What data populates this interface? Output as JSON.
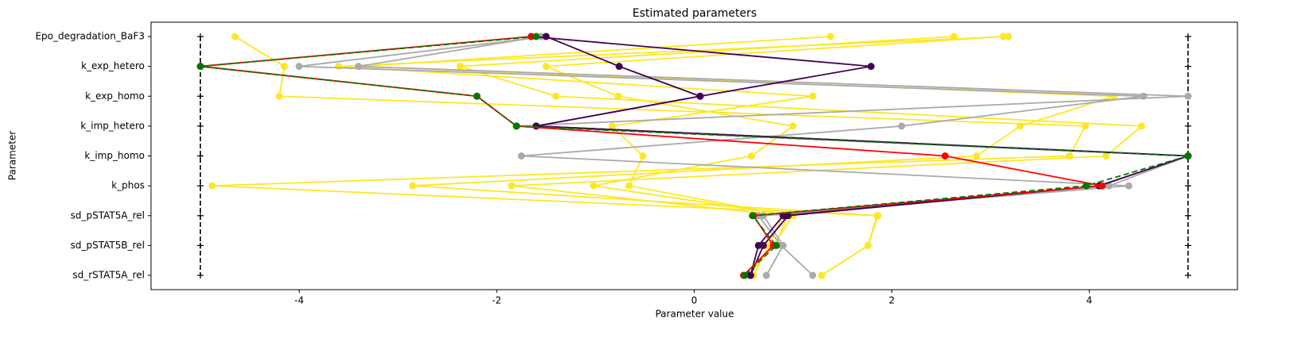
{
  "chart_data": {
    "type": "parameters",
    "title": "Estimated parameters",
    "x_label": "Parameter value",
    "y_label": "Parameter",
    "categories": [
      "Epo_degradation_BaF3",
      "k_exp_hetero",
      "k_exp_homo",
      "k_imp_hetero",
      "k_imp_homo",
      "k_phos",
      "sd_pSTAT5A_rel",
      "sd_pSTAT5B_rel",
      "sd_rSTAT5A_rel"
    ],
    "xlim": [
      -5.5,
      5.5
    ],
    "xticks": [
      -4,
      -2,
      0,
      2,
      4
    ],
    "lower_bound": -5,
    "upper_bound": 5,
    "series": [
      {
        "color": "#fde725",
        "values": [
          -4.65,
          -4.15,
          -4.2,
          3.96,
          3.8,
          -4.88,
          1.86,
          1.76,
          1.29
        ]
      },
      {
        "color": "#fde725",
        "values": [
          1.38,
          -3.4,
          4.25,
          3.3,
          2.86,
          -2.85,
          1.85,
          1.76,
          1.29
        ]
      },
      {
        "color": "#fde725",
        "values": [
          2.63,
          -2.37,
          -1.4,
          4.53,
          4.17,
          -1.85,
          0.9,
          0.75,
          0.6
        ]
      },
      {
        "color": "#fde725",
        "values": [
          3.13,
          -1.5,
          -0.77,
          1.0,
          0.58,
          -1.02,
          1.0,
          0.8,
          0.55
        ]
      },
      {
        "color": "#fde725",
        "values": [
          3.18,
          -3.6,
          1.2,
          -0.83,
          -0.52,
          -0.66,
          0.95,
          0.82,
          0.5
        ]
      },
      {
        "color": "#aaaaaa",
        "values": [
          -1.5,
          -4.0,
          4.55,
          2.1,
          -1.75,
          4.4,
          0.7,
          0.9,
          0.73
        ]
      },
      {
        "color": "#aaaaaa",
        "values": [
          -1.55,
          -3.4,
          5,
          -1.8,
          5,
          4.2,
          0.65,
          0.88,
          1.2
        ]
      },
      {
        "color": "#440154",
        "values": [
          -1.5,
          -0.76,
          0.06,
          -1.6,
          5,
          4.1,
          0.95,
          0.7,
          0.57
        ]
      },
      {
        "color": "#440154",
        "values": [
          -1.65,
          1.79,
          0.06,
          -1.6,
          5,
          4.1,
          0.9,
          0.65,
          0.57
        ]
      },
      {
        "color": "#ff0000",
        "values": [
          -1.65,
          -5,
          -2.2,
          -1.8,
          2.54,
          4.13,
          0.6,
          0.8,
          0.5
        ]
      },
      {
        "color": "#007700",
        "dashed": true,
        "values": [
          -1.6,
          -5,
          -2.2,
          -1.8,
          5,
          3.97,
          0.59,
          0.83,
          0.51
        ]
      }
    ]
  }
}
